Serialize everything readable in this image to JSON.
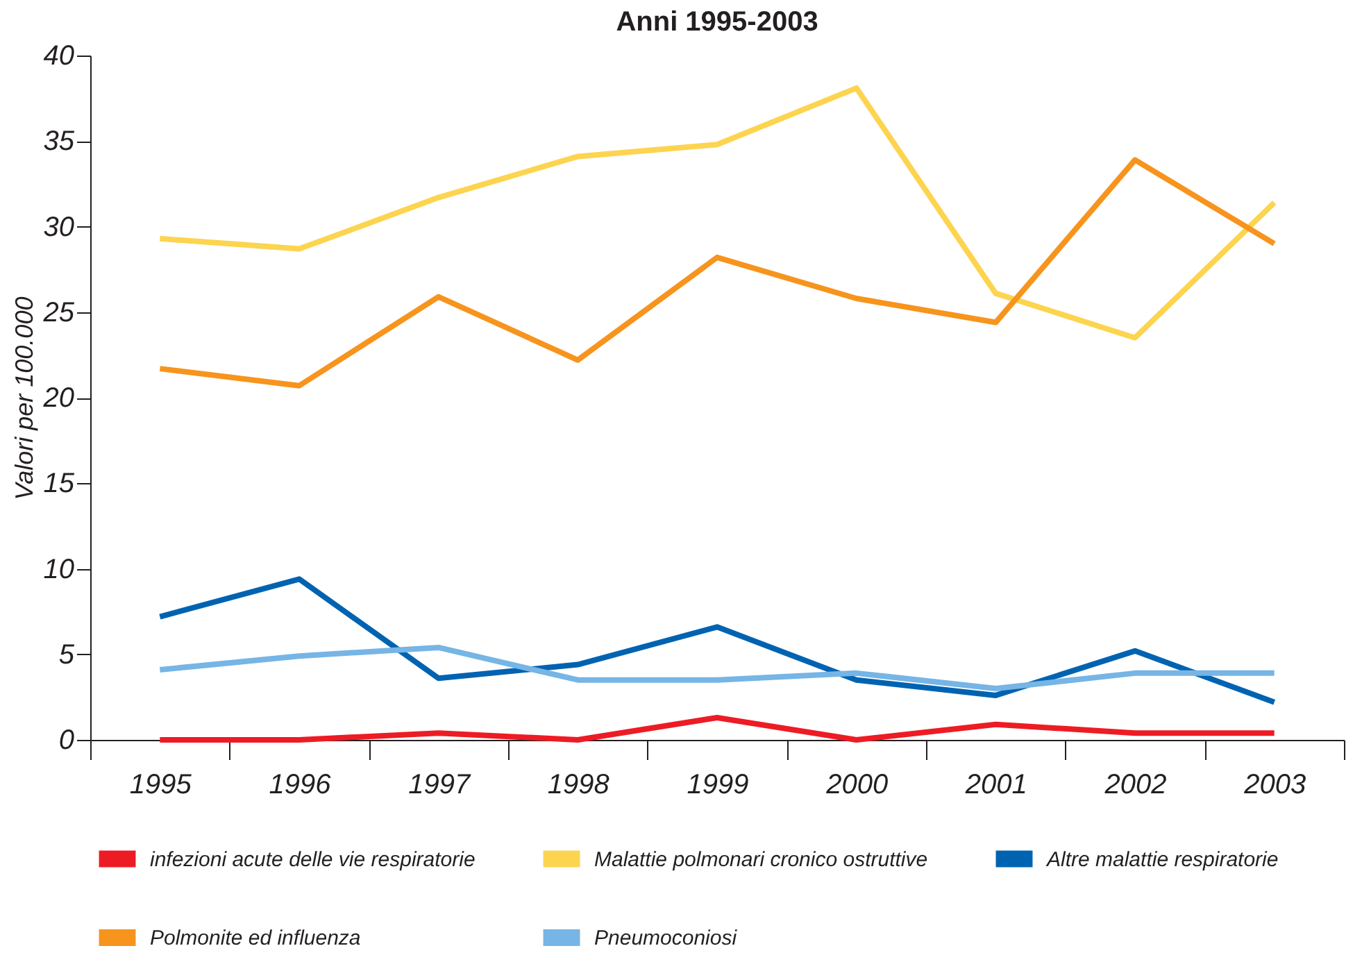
{
  "chart_data": {
    "type": "line",
    "title": "Anni 1995-2003",
    "ylabel": "Valori per 100.000",
    "categories": [
      "1995",
      "1996",
      "1997",
      "1998",
      "1999",
      "2000",
      "2001",
      "2002",
      "2003"
    ],
    "ylim": [
      0,
      40
    ],
    "yticks": [
      0,
      5,
      10,
      15,
      20,
      25,
      30,
      35,
      40
    ],
    "grid": false,
    "legend": "bottom",
    "marker": "none",
    "line_style": "solid",
    "series": [
      {
        "name": "infezioni acute delle vie respiratorie",
        "color": "#ed1c24",
        "values": [
          0,
          0,
          0.4,
          0,
          1.3,
          0,
          0.9,
          0.4,
          0.4
        ]
      },
      {
        "name": "Malattie polmonari cronico ostruttive",
        "color": "#fdd44f",
        "values": [
          29.3,
          28.7,
          31.7,
          34.1,
          34.8,
          38.1,
          26.1,
          23.5,
          31.4
        ]
      },
      {
        "name": "Altre malattie respiratorie",
        "color": "#0063b1",
        "values": [
          7.2,
          9.4,
          3.6,
          4.4,
          6.6,
          3.5,
          2.6,
          5.2,
          2.2
        ]
      },
      {
        "name": "Polmonite ed influenza",
        "color": "#f7941d",
        "values": [
          21.7,
          20.7,
          25.9,
          22.2,
          28.2,
          25.8,
          24.4,
          33.9,
          29.0
        ]
      },
      {
        "name": "Pneumoconiosi",
        "color": "#76b5e5",
        "values": [
          4.1,
          4.9,
          5.4,
          3.5,
          3.5,
          3.9,
          3.0,
          3.9,
          3.9
        ]
      }
    ]
  }
}
